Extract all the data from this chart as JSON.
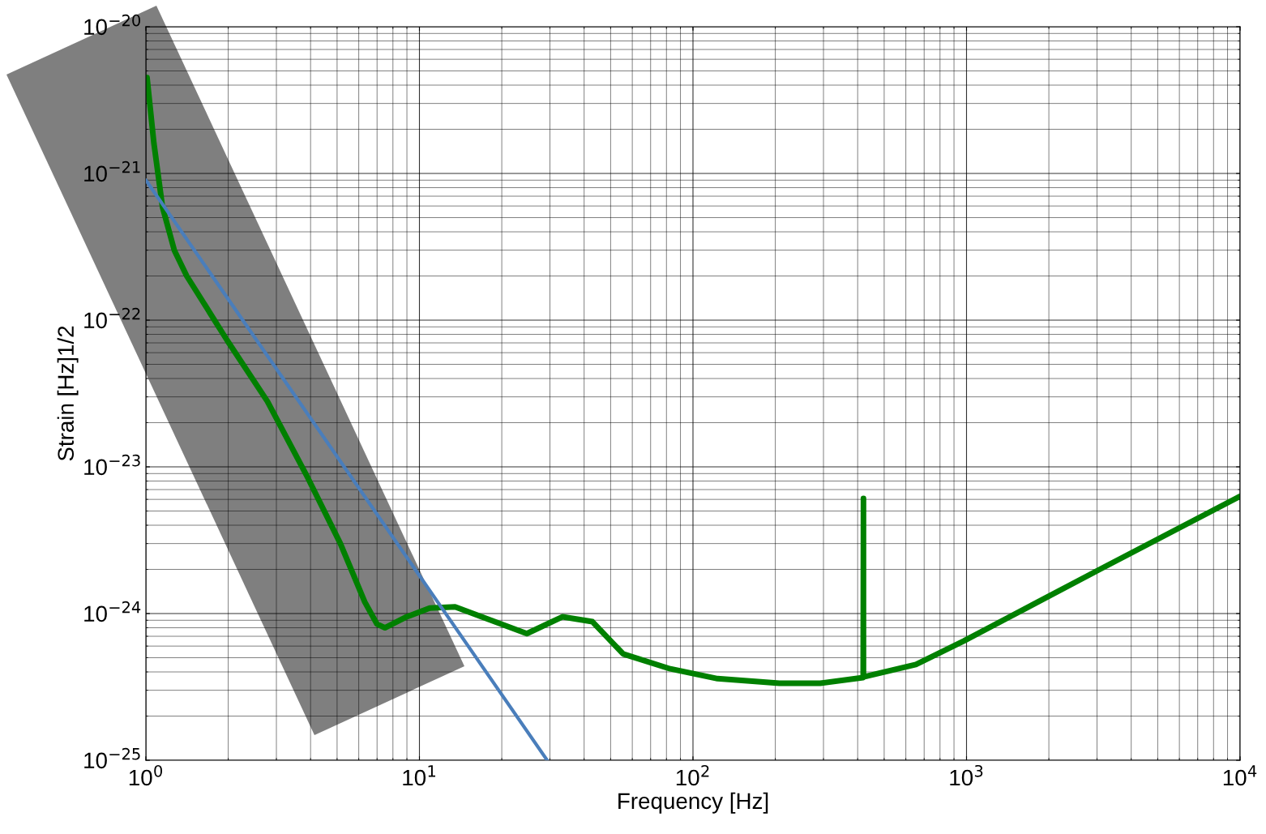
{
  "chart_data": {
    "type": "line",
    "xlabel": "Frequency [Hz]",
    "ylabel": "Strain [Hz]1/2",
    "log": "xy",
    "grid": true,
    "xlim": [
      1,
      10000
    ],
    "ylim": [
      1e-25,
      1e-20
    ],
    "xticks": [
      {
        "value": 1,
        "label": "10$^{0}$"
      },
      {
        "value": 10,
        "label": "10$^{1}$"
      },
      {
        "value": 100,
        "label": "10$^{2}$"
      },
      {
        "value": 1000,
        "label": "10$^{3}$"
      },
      {
        "value": 10000,
        "label": "10$^{4}$"
      }
    ],
    "yticks": [
      {
        "value": 1e-25,
        "label": "10$^{−25}$"
      },
      {
        "value": 1e-24,
        "label": "10$^{−24}$"
      },
      {
        "value": 1e-23,
        "label": "10$^{−23}$"
      },
      {
        "value": 1e-22,
        "label": "10$^{−22}$"
      },
      {
        "value": 1e-21,
        "label": "10$^{−21}$"
      },
      {
        "value": 1e-20,
        "label": "10$^{−20}$"
      }
    ],
    "series": [
      {
        "color": "#008000",
        "x": [
          1.01,
          1.07,
          1.15,
          1.27,
          1.41,
          1.98,
          2.78,
          3.91,
          5.14,
          6.31,
          6.99,
          7.48,
          8.87,
          10.9,
          13.5,
          24.7,
          33.3,
          42.9,
          55.6,
          82.6,
          123,
          207,
          292,
          419,
          420,
          420,
          421,
          653,
          977,
          3070,
          10000
        ],
        "values": [
          4.5e-21,
          1.6e-21,
          5.9e-22,
          3e-22,
          2e-22,
          7.3e-23,
          2.8e-23,
          8.4e-24,
          3e-24,
          1.2e-24,
          8.5e-25,
          8e-25,
          9.4e-25,
          1.09e-24,
          1.11e-24,
          7.3e-25,
          9.5e-25,
          8.8e-25,
          5.3e-25,
          4.2e-25,
          3.6e-25,
          3.35e-25,
          3.35e-25,
          3.66e-25,
          6.1e-24,
          3.7e-25,
          3.7e-25,
          4.5e-25,
          6.5e-25,
          2e-24,
          6.3e-24
        ]
      },
      {
        "color": "#4a7ebb",
        "x": [
          1,
          29.3
        ],
        "values": [
          9e-22,
          1e-25
        ]
      }
    ]
  }
}
